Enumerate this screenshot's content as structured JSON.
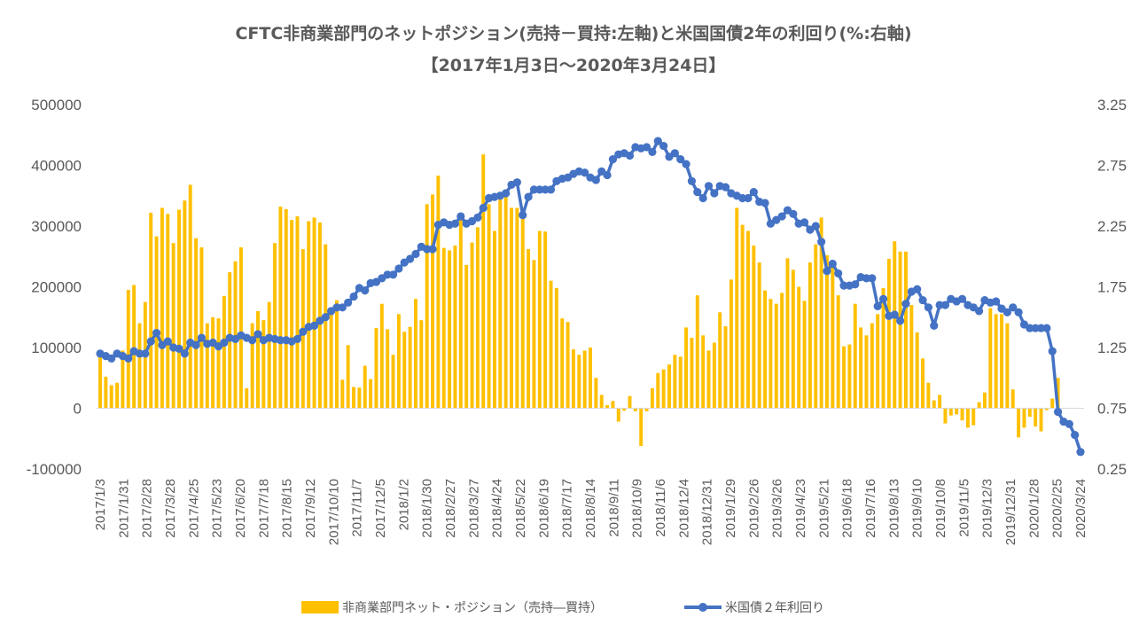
{
  "chart_data": {
    "type": "bar+line",
    "title": "CFTC非商業部門のネットポジション(売持－買持:左軸)と米国国債2年の利回り(%:右軸)",
    "subtitle": "【2017年1月3日～2020年3月24日】",
    "y_left": {
      "ylim": [
        -100000,
        500000
      ],
      "ticks": [
        "500000",
        "400000",
        "300000",
        "200000",
        "100000",
        "0",
        "-100000"
      ]
    },
    "y_right": {
      "ylim": [
        0.25,
        3.25
      ],
      "ticks": [
        "3.25",
        "2.75",
        "2.25",
        "1.75",
        "1.25",
        "0.75",
        "0.25"
      ]
    },
    "x_tick_labels": [
      "2017/1/3",
      "2017/1/31",
      "2017/2/28",
      "2017/3/28",
      "2017/4/25",
      "2017/5/23",
      "2017/6/20",
      "2017/7/18",
      "2017/8/15",
      "2017/9/12",
      "2017/10/10",
      "2017/11/7",
      "2017/12/5",
      "2018/1/2",
      "2018/1/30",
      "2018/2/27",
      "2018/3/27",
      "2018/4/24",
      "2018/5/22",
      "2018/6/19",
      "2018/7/17",
      "2018/8/14",
      "2018/9/11",
      "2018/10/9",
      "2018/11/6",
      "2018/12/4",
      "2018/12/31",
      "2019/1/29",
      "2019/2/26",
      "2019/3/26",
      "2019/4/23",
      "2019/5/21",
      "2019/6/18",
      "2019/7/16",
      "2019/8/13",
      "2019/9/10",
      "2019/10/8",
      "2019/11/5",
      "2019/12/3",
      "2019/12/31",
      "2020/1/28",
      "2020/2/25",
      "2020/3/24"
    ],
    "series": [
      {
        "name": "非商業部門ネット・ポジション（売持―買持）",
        "type": "bar",
        "axis": "left",
        "color": "#FFC000",
        "values": [
          95000,
          52000,
          38000,
          42000,
          95000,
          195000,
          203000,
          140000,
          175000,
          322000,
          283000,
          330000,
          320000,
          272000,
          327000,
          342000,
          368000,
          280000,
          265000,
          140000,
          150000,
          148000,
          185000,
          224000,
          242000,
          265000,
          33000,
          140000,
          160000,
          145000,
          175000,
          272000,
          332000,
          328000,
          310000,
          316000,
          262000,
          308000,
          314000,
          306000,
          270000,
          160000,
          178000,
          47000,
          104000,
          35000,
          34000,
          70000,
          48000,
          132000,
          172000,
          130000,
          88000,
          155000,
          126000,
          134000,
          180000,
          145000,
          336000,
          352000,
          383000,
          264000,
          260000,
          268000,
          318000,
          236000,
          273000,
          298000,
          418000,
          336000,
          292000,
          356000,
          356000,
          330000,
          330000,
          318000,
          262000,
          244000,
          292000,
          291000,
          210000,
          198000,
          148000,
          142000,
          97000,
          88000,
          95000,
          100000,
          50000,
          22000,
          5000,
          12000,
          -22000,
          -4000,
          20000,
          -5000,
          -62000,
          -5000,
          33000,
          58000,
          64000,
          72000,
          88000,
          85000,
          133000,
          116000,
          186000,
          120000,
          95000,
          108000,
          158000,
          135000,
          212000,
          330000,
          302000,
          292000,
          268000,
          240000,
          194000,
          180000,
          172000,
          190000,
          247000,
          228000,
          200000,
          177000,
          240000,
          270000,
          314000,
          252000,
          232000,
          186000,
          102000,
          105000,
          172000,
          133000,
          120000,
          140000,
          155000,
          198000,
          246000,
          275000,
          258000,
          258000,
          170000,
          125000,
          82000,
          42000,
          13000,
          22000,
          -25000,
          -12000,
          -10000,
          -20000,
          -32000,
          -28000,
          10000,
          26000,
          165000,
          155000,
          155000,
          140000,
          31000,
          -48000,
          -32000,
          -14000,
          -30000,
          -38000,
          -3000,
          16000,
          50000
        ]
      },
      {
        "name": "米国債２年利回り",
        "type": "line",
        "axis": "right",
        "color": "#4472C4",
        "values": [
          1.2,
          1.18,
          1.16,
          1.2,
          1.18,
          1.16,
          1.22,
          1.2,
          1.2,
          1.3,
          1.37,
          1.27,
          1.3,
          1.25,
          1.24,
          1.2,
          1.29,
          1.27,
          1.33,
          1.28,
          1.29,
          1.26,
          1.29,
          1.33,
          1.32,
          1.35,
          1.33,
          1.31,
          1.36,
          1.31,
          1.33,
          1.32,
          1.31,
          1.31,
          1.3,
          1.32,
          1.38,
          1.42,
          1.43,
          1.47,
          1.5,
          1.55,
          1.58,
          1.58,
          1.62,
          1.67,
          1.74,
          1.72,
          1.78,
          1.79,
          1.82,
          1.85,
          1.85,
          1.9,
          1.95,
          1.98,
          2.02,
          2.08,
          2.06,
          2.06,
          2.26,
          2.28,
          2.26,
          2.27,
          2.33,
          2.27,
          2.29,
          2.32,
          2.4,
          2.48,
          2.49,
          2.5,
          2.52,
          2.59,
          2.61,
          2.34,
          2.49,
          2.55,
          2.55,
          2.55,
          2.55,
          2.62,
          2.64,
          2.65,
          2.68,
          2.7,
          2.69,
          2.65,
          2.63,
          2.7,
          2.67,
          2.8,
          2.84,
          2.85,
          2.83,
          2.9,
          2.89,
          2.9,
          2.86,
          2.95,
          2.91,
          2.82,
          2.85,
          2.8,
          2.76,
          2.62,
          2.53,
          2.48,
          2.58,
          2.52,
          2.58,
          2.57,
          2.52,
          2.5,
          2.48,
          2.48,
          2.53,
          2.45,
          2.44,
          2.27,
          2.3,
          2.33,
          2.38,
          2.35,
          2.27,
          2.28,
          2.22,
          2.25,
          2.12,
          1.88,
          1.94,
          1.86,
          1.76,
          1.76,
          1.77,
          1.83,
          1.82,
          1.82,
          1.59,
          1.65,
          1.51,
          1.52,
          1.47,
          1.61,
          1.71,
          1.73,
          1.64,
          1.58,
          1.43,
          1.6,
          1.6,
          1.65,
          1.63,
          1.65,
          1.6,
          1.58,
          1.55,
          1.64,
          1.62,
          1.63,
          1.57,
          1.54,
          1.58,
          1.54,
          1.44,
          1.41,
          1.41,
          1.41,
          1.41,
          1.22,
          0.72,
          0.64,
          0.62,
          0.53,
          0.39
        ]
      }
    ],
    "grid": false,
    "legend": "bottom"
  }
}
